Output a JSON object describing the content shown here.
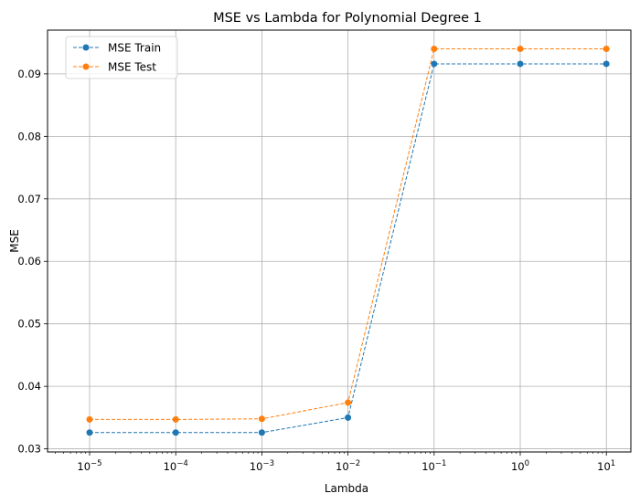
{
  "chart_data": {
    "type": "line",
    "title": "MSE vs Lambda for Polynomial Degree 1",
    "xlabel": "Lambda",
    "ylabel": "MSE",
    "x_scale": "log",
    "x": [
      1e-05,
      0.0001,
      0.001,
      0.01,
      0.1,
      1,
      10
    ],
    "x_ticks": [
      {
        "base": "10",
        "exp": "−5"
      },
      {
        "base": "10",
        "exp": "−4"
      },
      {
        "base": "10",
        "exp": "−3"
      },
      {
        "base": "10",
        "exp": "−2"
      },
      {
        "base": "10",
        "exp": "−1"
      },
      {
        "base": "10",
        "exp": "0"
      },
      {
        "base": "10",
        "exp": "1"
      }
    ],
    "y_ticks": [
      "0.03",
      "0.04",
      "0.05",
      "0.06",
      "0.07",
      "0.08",
      "0.09"
    ],
    "ylim": [
      0.0295,
      0.097
    ],
    "grid": true,
    "legend_position": "upper-left",
    "series": [
      {
        "name": "MSE Train",
        "color": "#1f77b4",
        "values": [
          0.0326,
          0.0326,
          0.0326,
          0.035,
          0.0916,
          0.0916,
          0.0916
        ]
      },
      {
        "name": "MSE Test",
        "color": "#ff7f0e",
        "values": [
          0.0347,
          0.0347,
          0.0348,
          0.0374,
          0.094,
          0.094,
          0.094
        ]
      }
    ]
  }
}
